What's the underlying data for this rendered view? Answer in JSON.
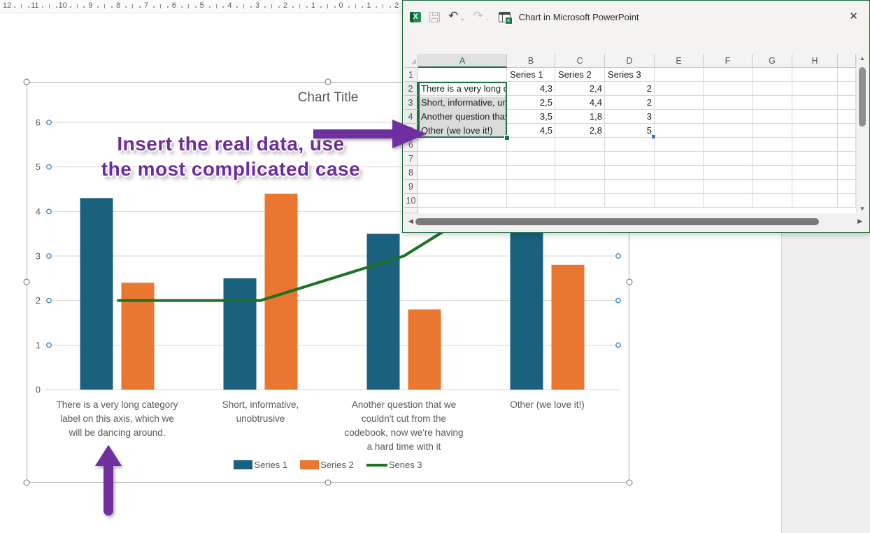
{
  "ruler": {
    "numbers": [
      12,
      11,
      10,
      9,
      8,
      7,
      6,
      5,
      4,
      3,
      2,
      1,
      0,
      1,
      2
    ]
  },
  "icons": {
    "excel_logo": "X",
    "view_table_badge": "x",
    "undo": "↶",
    "redo": "↷",
    "dropdown_chevron": "⌄",
    "close": "✕",
    "select_all": "◢",
    "scroll_left": "◀",
    "scroll_right": "▶",
    "scroll_up": "▲",
    "scroll_down": "▼"
  },
  "excel_window": {
    "title": "Chart in Microsoft PowerPoint",
    "sheet": {
      "column_headers": [
        "A",
        "B",
        "C",
        "D",
        "E",
        "F",
        "G",
        "H"
      ],
      "row_count": 10,
      "header_row": [
        "",
        "Series 1",
        "Series 2",
        "Series 3"
      ],
      "data_rows": [
        {
          "row": 2,
          "cells": [
            "There is a very long category label on this axis, which we will be dancing around.",
            "4,3",
            "2,4",
            "2"
          ]
        },
        {
          "row": 3,
          "cells": [
            "Short, informative, unobtrusive",
            "2,5",
            "4,4",
            "2"
          ]
        },
        {
          "row": 4,
          "cells": [
            "Another question that we couldn't cut from the codebook, now we're having a hard time with it",
            "3,5",
            "1,8",
            "3"
          ]
        },
        {
          "row": 5,
          "cells": [
            "Other (we love it!)",
            "4,5",
            "2,8",
            "5"
          ]
        }
      ],
      "selection": {
        "range": "A2:A5",
        "active_cell": "A2",
        "selected_rows": [
          2,
          3,
          4,
          5
        ],
        "selected_column": "A",
        "blue_handle_cell": "D5"
      }
    }
  },
  "chart_data": {
    "type": "combo",
    "title": "Chart Title",
    "categories": [
      "There is a very long category label on this axis, which we will be dancing around.",
      "Short, informative, unobtrusive",
      "Another question that we couldn't cut from the codebook, now we're having a hard time with it",
      "Other (we love it!)"
    ],
    "category_label_lines": [
      [
        "There is a very long category",
        "label on this axis, which we",
        "will be dancing around."
      ],
      [
        "Short, informative,",
        "unobtrusive"
      ],
      [
        "Another question that we",
        "couldn't cut from the",
        "codebook, now we're having",
        "a hard time with it"
      ],
      [
        "Other (we love it!)"
      ]
    ],
    "series": [
      {
        "name": "Series 1",
        "type": "bar",
        "color": "#1a607f",
        "values": [
          4.3,
          2.5,
          3.5,
          4.5
        ]
      },
      {
        "name": "Series 2",
        "type": "bar",
        "color": "#e9772f",
        "values": [
          2.4,
          4.4,
          1.8,
          2.8
        ]
      },
      {
        "name": "Series 3",
        "type": "line",
        "color": "#1e7125",
        "values": [
          2,
          2,
          3,
          5
        ]
      }
    ],
    "ylim": [
      0,
      6
    ],
    "yticks": [
      0,
      1,
      2,
      3,
      4,
      5,
      6
    ],
    "grid": true,
    "legend_position": "bottom",
    "gridline_color": "#d9d9d9",
    "text_color": "#595959",
    "gridline_marker_color": "#3f88cc"
  },
  "annotation": {
    "lines": [
      "Insert the real data, use",
      "the most complicated case"
    ],
    "color": "#7030a0"
  }
}
